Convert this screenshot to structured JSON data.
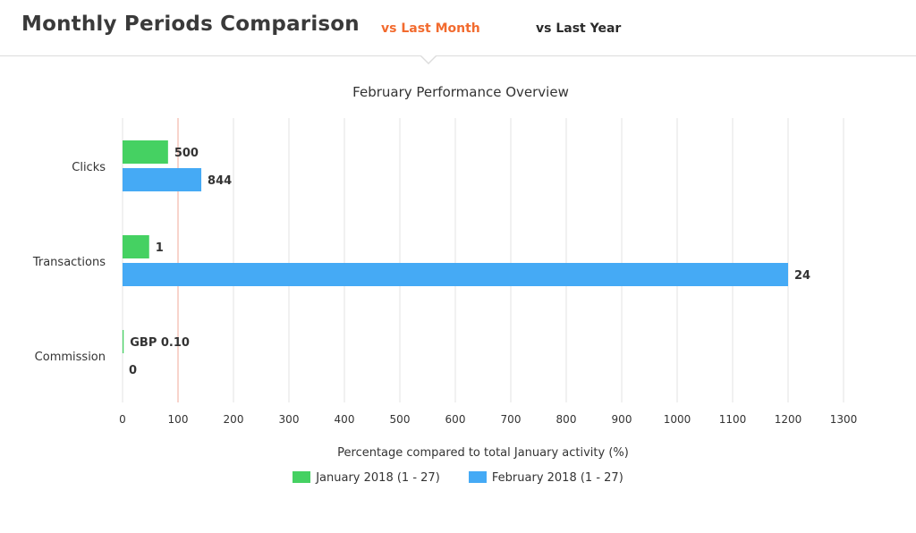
{
  "header": {
    "title": "Monthly Periods Comparison",
    "tabs": [
      {
        "label": "vs Last Month",
        "active": true
      },
      {
        "label": "vs Last Year",
        "active": false
      }
    ]
  },
  "colors": {
    "active_tab": "#f26b2f",
    "series_jan": "#45d162",
    "series_feb": "#45aaf5",
    "reference_line": "#f0a99a",
    "grid": "#e3e3e3"
  },
  "chart_data": {
    "type": "bar",
    "orientation": "horizontal",
    "title": "February Performance Overview",
    "xlabel": "Percentage compared to total January activity (%)",
    "ylabel": "",
    "categories": [
      "Clicks",
      "Transactions",
      "Commission"
    ],
    "series": [
      {
        "name": "January 2018 (1 - 27)",
        "values": [
          82,
          48,
          2
        ],
        "labels": [
          "500",
          "1",
          "GBP 0.10"
        ]
      },
      {
        "name": "February 2018 (1 - 27)",
        "values": [
          142,
          1200,
          0
        ],
        "labels": [
          "844",
          "24",
          "0"
        ]
      }
    ],
    "xlim": [
      0,
      1300
    ],
    "xticks": [
      0,
      100,
      200,
      300,
      400,
      500,
      600,
      700,
      800,
      900,
      1000,
      1100,
      1200,
      1300
    ],
    "reference_line": 100,
    "grid": true,
    "legend_position": "bottom"
  }
}
